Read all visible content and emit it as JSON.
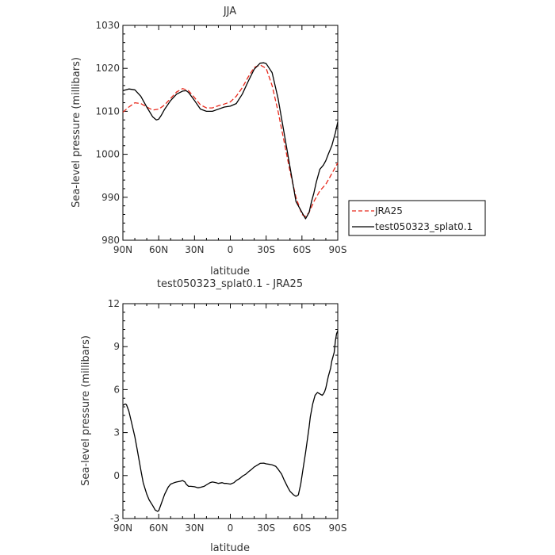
{
  "chart_data": [
    {
      "type": "line",
      "title": "JJA",
      "xlabel": "latitude",
      "ylabel": "Sea-level pressure (millibars)",
      "xlim": [
        90,
        -90
      ],
      "ylim": [
        980,
        1030
      ],
      "x_tick_values": [
        90,
        60,
        30,
        0,
        -30,
        -60,
        -90
      ],
      "x_tick_labels": [
        "90N",
        "60N",
        "30N",
        "0",
        "30S",
        "60S",
        "90S"
      ],
      "y_tick_values": [
        980,
        990,
        1000,
        1010,
        1020,
        1030
      ],
      "y_tick_labels": [
        "980",
        "990",
        "1000",
        "1010",
        "1020",
        "1030"
      ],
      "grid": false,
      "legend_position": "right",
      "series": [
        {
          "name": "JRA25",
          "color": "#e8291c",
          "dash": "dashed",
          "x": [
            90,
            85,
            80,
            75,
            70,
            65,
            60,
            55,
            50,
            45,
            40,
            35,
            30,
            25,
            20,
            15,
            10,
            5,
            0,
            -5,
            -10,
            -15,
            -20,
            -25,
            -30,
            -35,
            -40,
            -45,
            -50,
            -55,
            -60,
            -63,
            -66,
            -70,
            -75,
            -80,
            -85,
            -90
          ],
          "values": [
            1009.8,
            1011,
            1012,
            1011.8,
            1011,
            1010.3,
            1010.5,
            1011.5,
            1013,
            1014.5,
            1015.3,
            1014.8,
            1013.2,
            1011.5,
            1010.8,
            1010.8,
            1011.3,
            1011.7,
            1012.2,
            1013.5,
            1015.5,
            1018,
            1020.2,
            1020.8,
            1020,
            1016,
            1010,
            1003,
            996,
            990,
            986,
            985.5,
            986.5,
            989,
            991.5,
            993,
            995.5,
            998
          ]
        },
        {
          "name": "test050323_splat0.1",
          "color": "#000000",
          "dash": "solid",
          "x": [
            90,
            85,
            80,
            75,
            70,
            65,
            62,
            60,
            58,
            55,
            50,
            45,
            40,
            37,
            35,
            30,
            25,
            20,
            15,
            10,
            5,
            0,
            -5,
            -10,
            -15,
            -20,
            -25,
            -28,
            -30,
            -35,
            -40,
            -45,
            -50,
            -55,
            -60,
            -63,
            -66,
            -68,
            -70,
            -72,
            -75,
            -78,
            -80,
            -82,
            -85,
            -88,
            -90
          ],
          "values": [
            1014.8,
            1015.2,
            1015,
            1013.5,
            1011,
            1008.7,
            1008,
            1008.2,
            1009,
            1010.5,
            1012.5,
            1014,
            1014.7,
            1014.8,
            1014.4,
            1012.5,
            1010.5,
            1010,
            1010,
            1010.5,
            1011,
            1011.2,
            1011.8,
            1014,
            1017,
            1019.8,
            1021.2,
            1021.3,
            1021.1,
            1019,
            1013,
            1005,
            997,
            989,
            986.5,
            985,
            986.5,
            989,
            991,
            993.5,
            996.5,
            997.5,
            998.5,
            1000,
            1002,
            1005,
            1007.5
          ]
        }
      ]
    },
    {
      "type": "line",
      "title": "test050323_splat0.1 - JRA25",
      "xlabel": "latitude",
      "ylabel": "Sea-level pressure (millibars)",
      "xlim": [
        90,
        -90
      ],
      "ylim": [
        -3,
        12
      ],
      "x_tick_values": [
        90,
        60,
        30,
        0,
        -30,
        -60,
        -90
      ],
      "x_tick_labels": [
        "90N",
        "60N",
        "30N",
        "0",
        "30S",
        "60S",
        "90S"
      ],
      "y_tick_values": [
        -3,
        0,
        3,
        6,
        9,
        12
      ],
      "y_tick_labels": [
        "-3",
        "0",
        "3",
        "6",
        "9",
        "12"
      ],
      "grid": false,
      "series": [
        {
          "color": "#000000",
          "dash": "solid",
          "x": [
            90,
            88,
            87,
            85,
            83,
            80,
            78,
            75,
            73,
            70,
            68,
            65,
            63,
            61,
            60,
            58,
            55,
            52,
            50,
            47,
            45,
            42,
            40,
            38,
            37,
            35,
            33,
            30,
            27,
            25,
            22,
            20,
            17,
            15,
            12,
            10,
            7,
            5,
            3,
            0,
            -3,
            -5,
            -8,
            -10,
            -13,
            -15,
            -18,
            -20,
            -23,
            -25,
            -28,
            -30,
            -33,
            -35,
            -38,
            -40,
            -43,
            -45,
            -48,
            -50,
            -53,
            -55,
            -57,
            -59,
            -61,
            -63,
            -65,
            -66,
            -67,
            -69,
            -71,
            -73,
            -74,
            -75,
            -77,
            -78,
            -79,
            -80,
            -82,
            -84,
            -85,
            -87,
            -88,
            -89,
            -90
          ],
          "values": [
            4.9,
            5.0,
            4.95,
            4.5,
            3.8,
            2.7,
            1.8,
            0.4,
            -0.5,
            -1.3,
            -1.7,
            -2.1,
            -2.4,
            -2.5,
            -2.45,
            -2.0,
            -1.3,
            -0.8,
            -0.6,
            -0.5,
            -0.45,
            -0.4,
            -0.35,
            -0.45,
            -0.6,
            -0.75,
            -0.75,
            -0.78,
            -0.85,
            -0.82,
            -0.75,
            -0.65,
            -0.5,
            -0.45,
            -0.5,
            -0.55,
            -0.5,
            -0.55,
            -0.55,
            -0.6,
            -0.5,
            -0.35,
            -0.2,
            -0.05,
            0.1,
            0.25,
            0.45,
            0.6,
            0.75,
            0.85,
            0.87,
            0.82,
            0.78,
            0.75,
            0.65,
            0.45,
            0.1,
            -0.3,
            -0.8,
            -1.1,
            -1.35,
            -1.45,
            -1.35,
            -0.6,
            0.5,
            1.6,
            2.8,
            3.4,
            4.1,
            5.0,
            5.6,
            5.8,
            5.75,
            5.7,
            5.6,
            5.7,
            5.85,
            6.1,
            6.9,
            7.5,
            8.0,
            8.6,
            9.4,
            9.9,
            10.1
          ]
        }
      ]
    }
  ]
}
